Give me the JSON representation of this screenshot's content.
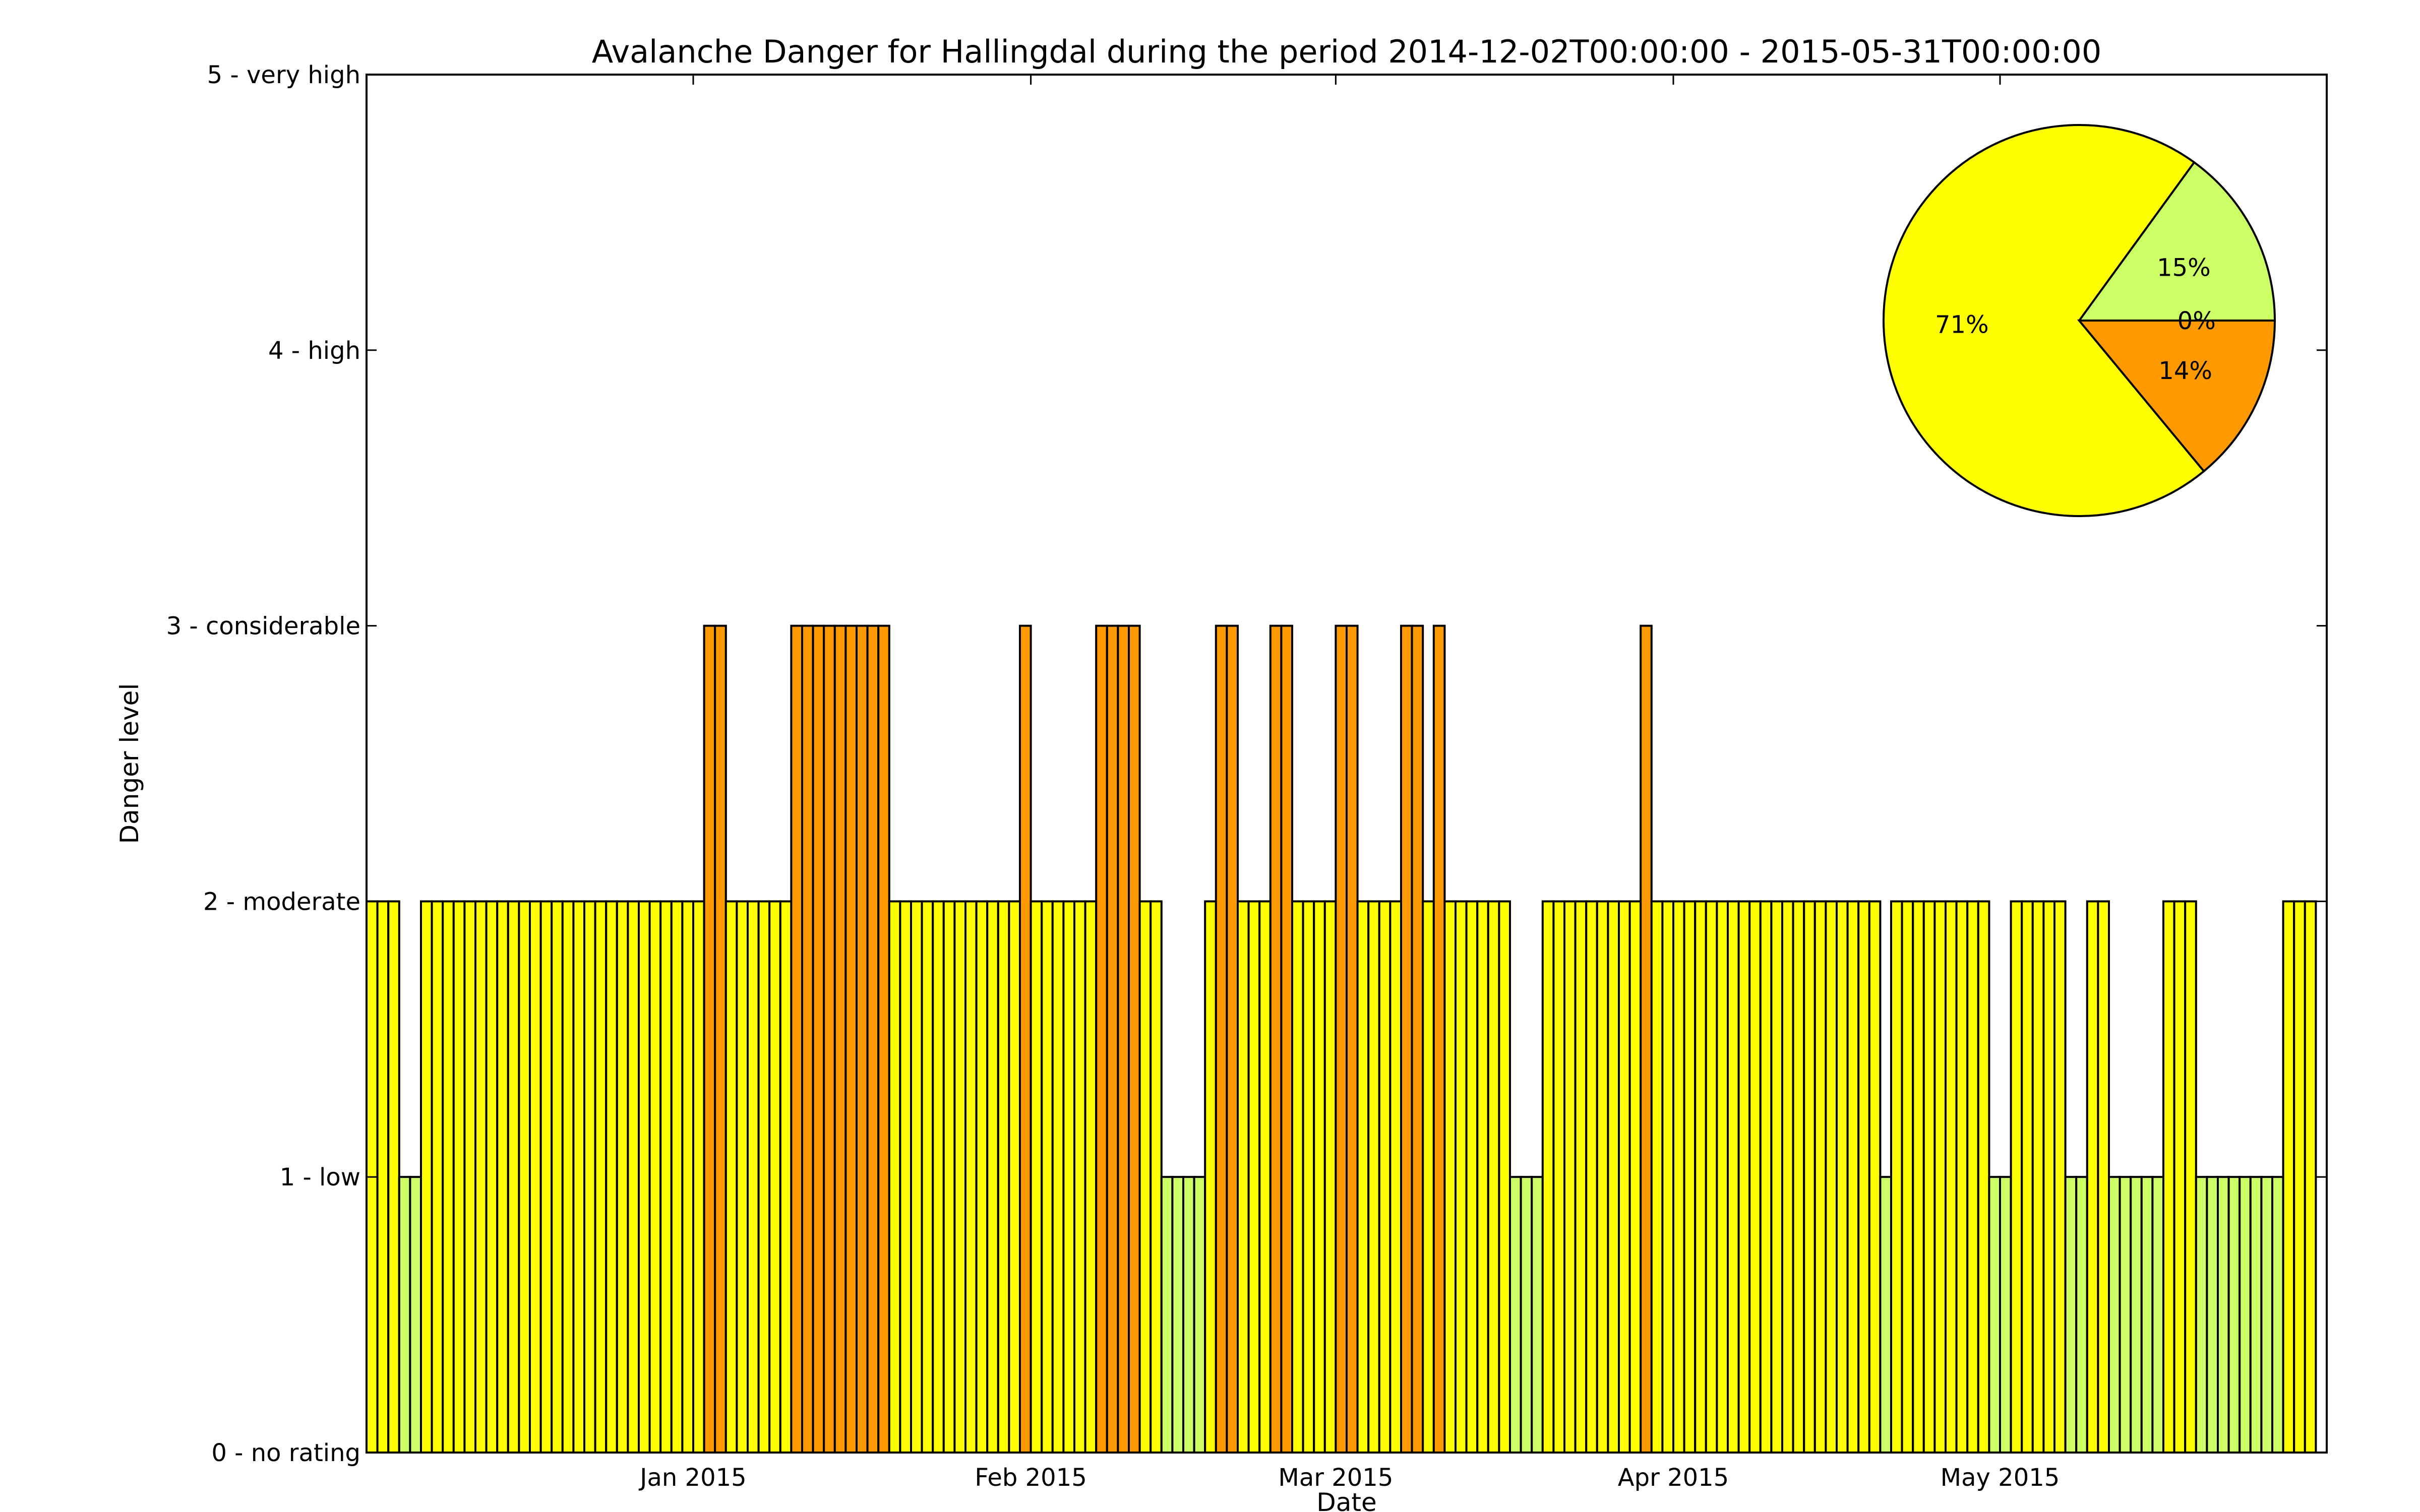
{
  "chart_data": [
    {
      "type": "bar",
      "title": "Avalanche Danger for Hallingdal during the period 2014-12-02T00:00:00 - 2015-05-31T00:00:00",
      "xlabel": "Date",
      "ylabel": "Danger level",
      "ylim": [
        0,
        5
      ],
      "xlim": [
        "2014-12-02",
        "2015-05-31"
      ],
      "y_ticks": [
        {
          "value": 0,
          "label": "0 - no rating"
        },
        {
          "value": 1,
          "label": "1 - low"
        },
        {
          "value": 2,
          "label": "2 - moderate"
        },
        {
          "value": 3,
          "label": "3 - considerable"
        },
        {
          "value": 4,
          "label": "4 - high"
        },
        {
          "value": 5,
          "label": "5 - very high"
        }
      ],
      "x_ticks": [
        {
          "date": "2015-01-01",
          "label": "Jan 2015"
        },
        {
          "date": "2015-02-01",
          "label": "Feb 2015"
        },
        {
          "date": "2015-03-01",
          "label": "Mar 2015"
        },
        {
          "date": "2015-04-01",
          "label": "Apr 2015"
        },
        {
          "date": "2015-05-01",
          "label": "May 2015"
        }
      ],
      "level_colors": {
        "1": "#ccff66",
        "2": "#ffff00",
        "3": "#ff9900"
      },
      "grid": false,
      "start_date": "2014-12-02",
      "values": [
        2,
        2,
        2,
        1,
        1,
        2,
        2,
        2,
        2,
        2,
        2,
        2,
        2,
        2,
        2,
        2,
        2,
        2,
        2,
        2,
        2,
        2,
        2,
        2,
        2,
        2,
        2,
        2,
        2,
        2,
        2,
        3,
        3,
        2,
        2,
        2,
        2,
        2,
        2,
        3,
        3,
        3,
        3,
        3,
        3,
        3,
        3,
        3,
        2,
        2,
        2,
        2,
        2,
        2,
        2,
        2,
        2,
        2,
        2,
        2,
        3,
        2,
        2,
        2,
        2,
        2,
        2,
        3,
        3,
        3,
        3,
        2,
        2,
        1,
        1,
        1,
        1,
        2,
        3,
        3,
        2,
        2,
        2,
        3,
        3,
        2,
        2,
        2,
        2,
        3,
        3,
        2,
        2,
        2,
        2,
        3,
        3,
        2,
        3,
        2,
        2,
        2,
        2,
        2,
        2,
        1,
        1,
        1,
        2,
        2,
        2,
        2,
        2,
        2,
        2,
        2,
        2,
        3,
        2,
        2,
        2,
        2,
        2,
        2,
        2,
        2,
        2,
        2,
        2,
        2,
        2,
        2,
        2,
        2,
        2,
        2,
        2,
        2,
        2,
        1,
        2,
        2,
        2,
        2,
        2,
        2,
        2,
        2,
        2,
        1,
        1,
        2,
        2,
        2,
        2,
        2,
        1,
        1,
        2,
        2,
        1,
        1,
        1,
        1,
        1,
        2,
        2,
        2,
        1,
        1,
        1,
        1,
        1,
        1,
        1,
        1,
        2,
        2,
        2
      ]
    },
    {
      "type": "pie",
      "slices": [
        {
          "label": "15%",
          "value": 15,
          "color": "#ccff66"
        },
        {
          "label": "71%",
          "value": 71,
          "color": "#ffff00"
        },
        {
          "label": "14%",
          "value": 14,
          "color": "#ff9900"
        },
        {
          "label": "0%",
          "value": 0,
          "color": "#ff0000"
        }
      ]
    }
  ]
}
